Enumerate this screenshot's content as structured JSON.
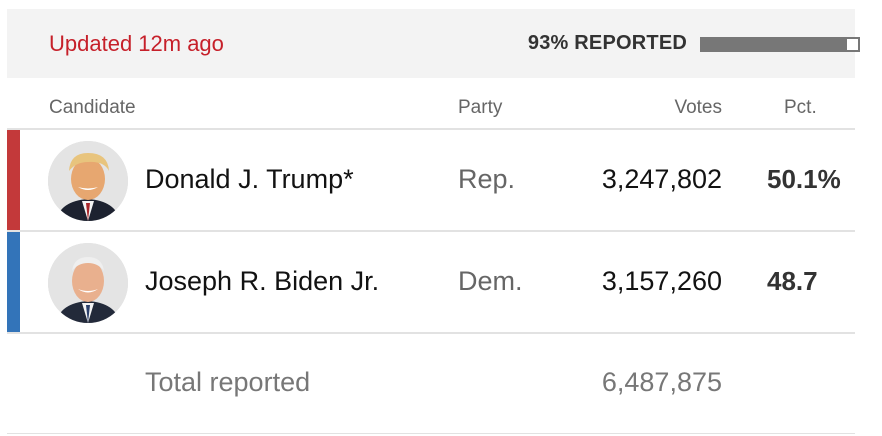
{
  "status": {
    "updated_text": "Updated 12m ago",
    "reported_text": "93% REPORTED",
    "reported_fraction": 0.93
  },
  "columns": {
    "candidate": "Candidate",
    "party": "Party",
    "votes": "Votes",
    "pct": "Pct."
  },
  "candidates": [
    {
      "name": "Donald J. Trump*",
      "party": "Rep.",
      "votes": "3,247,802",
      "pct": "50.1%",
      "party_color": "#c3393a",
      "avatar": "trump-photo"
    },
    {
      "name": "Joseph R. Biden Jr.",
      "party": "Dem.",
      "votes": "3,157,260",
      "pct": "48.7",
      "party_color": "#3374b9",
      "avatar": "biden-photo"
    }
  ],
  "total": {
    "label": "Total reported",
    "votes": "6,487,875"
  },
  "colors": {
    "updated": "#c6202a",
    "republican": "#c3393a",
    "democrat": "#3374b9",
    "progress": "#777777"
  }
}
